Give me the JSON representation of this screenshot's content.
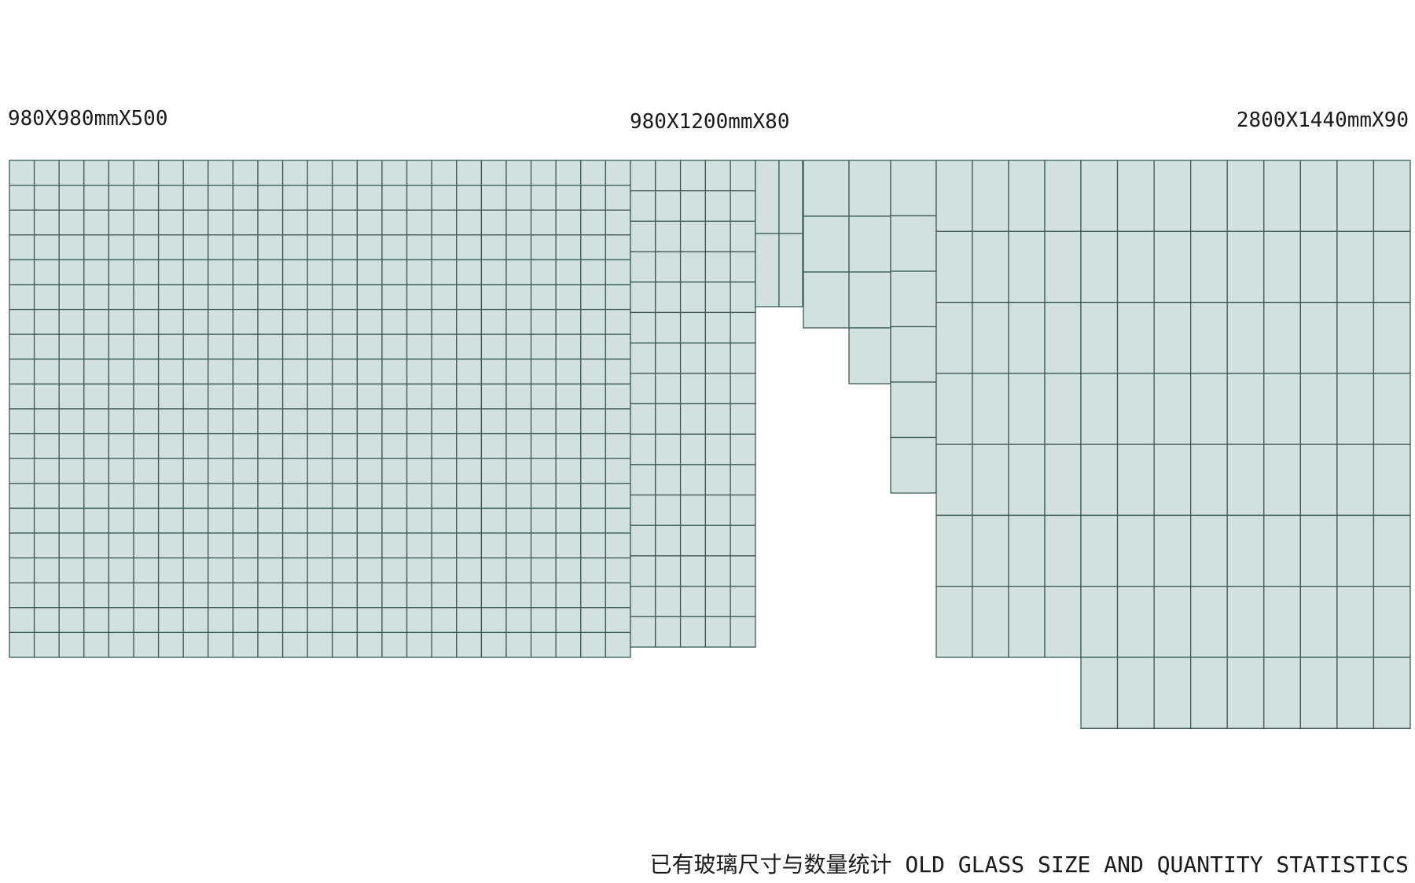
{
  "groups": {
    "a": {
      "label": "980X980mmX500"
    },
    "b": {
      "label": "980X1200mmX80"
    },
    "c": {
      "label": "2800X1440mmX90"
    }
  },
  "caption": "已有玻璃尺寸与数量统计 OLD GLASS SIZE AND QUANTITY STATISTICS",
  "colors": {
    "glass_fill": "#d2e1de",
    "glass_stroke": "#3f5a55"
  }
}
